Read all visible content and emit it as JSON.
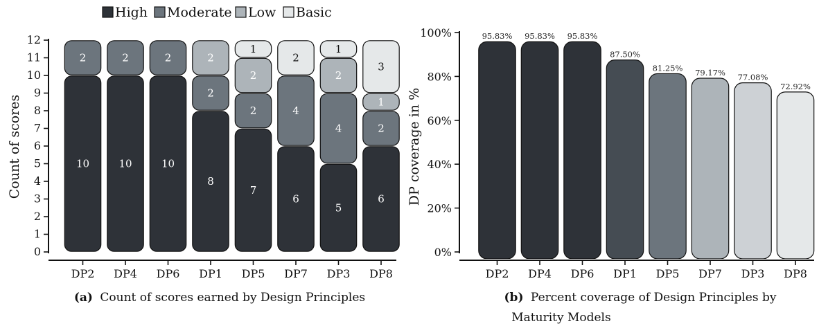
{
  "legend": {
    "items": [
      {
        "label": "High",
        "color": "#2e3238"
      },
      {
        "label": "Moderate",
        "color": "#6c757d"
      },
      {
        "label": "Low",
        "color": "#adb4b9"
      },
      {
        "label": "Basic",
        "color": "#e5e8e9"
      }
    ]
  },
  "chart_data": [
    {
      "type": "bar",
      "stacked": true,
      "categories": [
        "DP2",
        "DP4",
        "DP6",
        "DP1",
        "DP5",
        "DP7",
        "DP3",
        "DP8"
      ],
      "series": [
        {
          "name": "High",
          "values": [
            10,
            10,
            10,
            8,
            7,
            6,
            5,
            6
          ],
          "color": "#2e3238"
        },
        {
          "name": "Moderate",
          "values": [
            2,
            2,
            2,
            2,
            2,
            4,
            4,
            2
          ],
          "color": "#6c757d"
        },
        {
          "name": "Low",
          "values": [
            0,
            0,
            0,
            2,
            2,
            0,
            2,
            1
          ],
          "color": "#adb4b9"
        },
        {
          "name": "Basic",
          "values": [
            0,
            0,
            0,
            0,
            1,
            2,
            1,
            3
          ],
          "color": "#e5e8e9"
        }
      ],
      "ylabel": "Count of scores",
      "ylim": [
        0,
        12
      ],
      "yticks": [
        "0",
        "1",
        "2",
        "3",
        "4",
        "5",
        "6",
        "7",
        "8",
        "9",
        "10",
        "11",
        "12"
      ],
      "caption_bold": "(a)",
      "caption": "Count of scores earned by Design Principles"
    },
    {
      "type": "bar",
      "categories": [
        "DP2",
        "DP4",
        "DP6",
        "DP1",
        "DP5",
        "DP7",
        "DP3",
        "DP8"
      ],
      "values": [
        95.83,
        95.83,
        95.83,
        87.5,
        81.25,
        79.17,
        77.08,
        72.92
      ],
      "value_labels": [
        "95.83%",
        "95.83%",
        "95.83%",
        "87.50%",
        "81.25%",
        "79.17%",
        "77.08%",
        "72.92%"
      ],
      "colors": [
        "#2e3238",
        "#2e3238",
        "#2e3238",
        "#454c53",
        "#6c757d",
        "#adb4b9",
        "#cdd1d5",
        "#e5e8e9"
      ],
      "ylabel": "DP coverage in %",
      "ylim": [
        0,
        100
      ],
      "yticks": [
        "0%",
        "20%",
        "40%",
        "60%",
        "80%",
        "100%"
      ],
      "caption_bold": "(b)",
      "caption_line1": "Percent coverage of Design Principles by",
      "caption_line2": "Maturity Models"
    }
  ]
}
